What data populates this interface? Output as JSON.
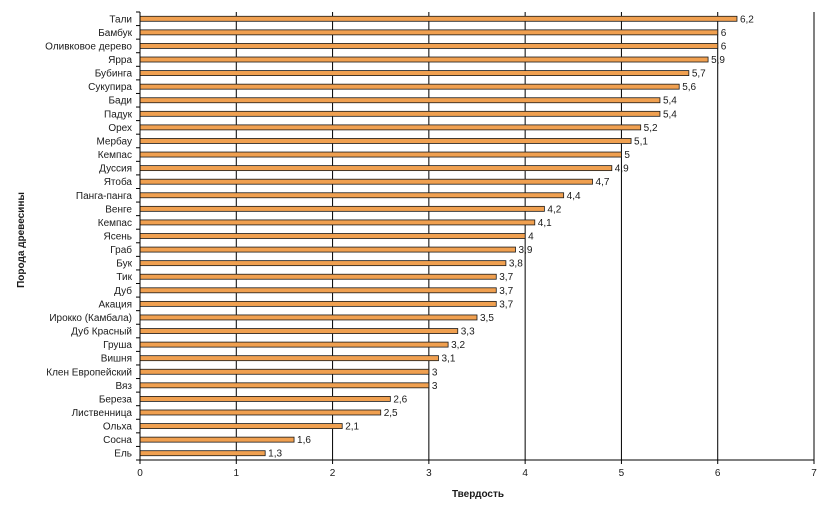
{
  "chart_data": {
    "type": "bar",
    "orientation": "horizontal",
    "title": "",
    "xlabel": "Твердость",
    "ylabel": "Порода древесины",
    "xlim": [
      0,
      7
    ],
    "x_ticks": [
      "0",
      "1",
      "2",
      "3",
      "4",
      "5",
      "6",
      "7"
    ],
    "grid": "vertical major gridlines",
    "legend": "none",
    "bar_color": "#f0a050",
    "categories": [
      "Тали",
      "Бамбук",
      "Оливковое дерево",
      "Ярра",
      "Бубинга",
      "Сукупира",
      "Бади",
      "Падук",
      "Орех",
      "Мербау",
      "Кемпас",
      "Дуссия",
      "Ятоба",
      "Панга-панга",
      "Венге",
      "Кемпас",
      "Ясень",
      "Граб",
      "Бук",
      "Тик",
      "Дуб",
      "Акация",
      "Ироккo (Камбала)",
      "Дуб Красный",
      "Груша",
      "Вишня",
      "Клен Европейский",
      "Вяз",
      "Береза",
      "Лиственница",
      "Ольха",
      "Сосна",
      "Ель"
    ],
    "values": [
      6.2,
      6,
      6,
      5.9,
      5.7,
      5.6,
      5.4,
      5.4,
      5.2,
      5.1,
      5,
      4.9,
      4.7,
      4.4,
      4.2,
      4.1,
      4,
      3.9,
      3.8,
      3.7,
      3.7,
      3.7,
      3.5,
      3.3,
      3.2,
      3.1,
      3,
      3,
      2.6,
      2.5,
      2.1,
      1.6,
      1.3
    ],
    "value_labels": [
      "6,2",
      "6",
      "6",
      "5,9",
      "5,7",
      "5,6",
      "5,4",
      "5,4",
      "5,2",
      "5,1",
      "5",
      "4,9",
      "4,7",
      "4,4",
      "4,2",
      "4,1",
      "4",
      "3,9",
      "3,8",
      "3,7",
      "3,7",
      "3,7",
      "3,5",
      "3,3",
      "3,2",
      "3,1",
      "3",
      "3",
      "2,6",
      "2,5",
      "2,1",
      "1,6",
      "1,3"
    ]
  }
}
